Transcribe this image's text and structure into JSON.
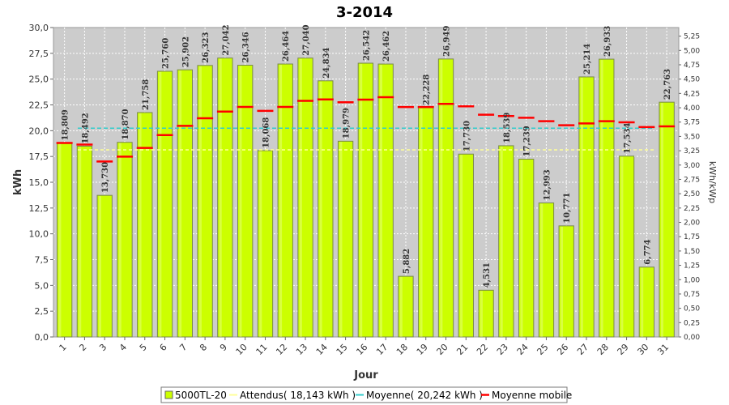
{
  "chart_data": {
    "type": "bar",
    "title": "3-2014",
    "xlabel": "Jour",
    "ylabel": "kWh",
    "y2label": "kWh/kWp",
    "ylim": [
      0,
      30
    ],
    "y2lim": [
      0,
      5.4
    ],
    "grid": true,
    "legend_position": "bottom",
    "categories": [
      "1",
      "2",
      "3",
      "4",
      "5",
      "6",
      "7",
      "8",
      "9",
      "10",
      "11",
      "12",
      "13",
      "14",
      "15",
      "16",
      "17",
      "18",
      "19",
      "20",
      "21",
      "22",
      "23",
      "24",
      "25",
      "26",
      "27",
      "28",
      "29",
      "30",
      "31"
    ],
    "value_labels": [
      "18,809",
      "18,492",
      "13,730",
      "18,870",
      "21,758",
      "25,760",
      "25,902",
      "26,323",
      "27,042",
      "26,346",
      "18,068",
      "26,464",
      "27,040",
      "24,834",
      "18,979",
      "26,542",
      "26,462",
      "5,882",
      "22,228",
      "26,949",
      "17,730",
      "4,531",
      "18,539",
      "17,239",
      "12,993",
      "10,771",
      "25,214",
      "26,933",
      "17,534",
      "6,774",
      "22,763"
    ],
    "y_ticks": [
      "0,0",
      "2,5",
      "5,0",
      "7,5",
      "10,0",
      "12,5",
      "15,0",
      "17,5",
      "20,0",
      "22,5",
      "25,0",
      "27,5",
      "30,0"
    ],
    "y2_ticks": [
      "0,00",
      "0,25",
      "0,50",
      "0,75",
      "1,00",
      "1,25",
      "1,50",
      "1,75",
      "2,00",
      "2,25",
      "2,50",
      "2,75",
      "3,00",
      "3,25",
      "3,50",
      "3,75",
      "4,00",
      "4,25",
      "4,50",
      "4,75",
      "5,00",
      "5,25"
    ],
    "series": [
      {
        "name": "5000TL-20",
        "type": "bar",
        "color": "#ccff00",
        "values": [
          18.809,
          18.492,
          13.73,
          18.87,
          21.758,
          25.76,
          25.902,
          26.323,
          27.042,
          26.346,
          18.068,
          26.464,
          27.04,
          24.834,
          18.979,
          26.542,
          26.462,
          5.882,
          22.228,
          26.949,
          17.73,
          4.531,
          18.539,
          17.239,
          12.993,
          10.771,
          25.214,
          26.933,
          17.534,
          6.774,
          22.763
        ]
      },
      {
        "name": "Attendus( 18,143 kWh )",
        "type": "hline",
        "color": "#ffff99",
        "value": 18.143
      },
      {
        "name": "Moyenne( 20,242 kWh )",
        "type": "hline",
        "color": "#33cccc",
        "value": 20.242
      },
      {
        "name": "Moyenne mobile",
        "type": "marker",
        "color": "#ff0000",
        "values": [
          18.81,
          18.65,
          17.01,
          17.48,
          18.33,
          19.57,
          20.47,
          21.2,
          21.85,
          22.3,
          21.92,
          22.3,
          22.89,
          23.03,
          22.76,
          23.01,
          23.25,
          22.29,
          22.29,
          22.6,
          22.36,
          21.55,
          21.42,
          21.25,
          20.92,
          20.53,
          20.7,
          20.92,
          20.81,
          20.35,
          20.42
        ]
      }
    ]
  }
}
